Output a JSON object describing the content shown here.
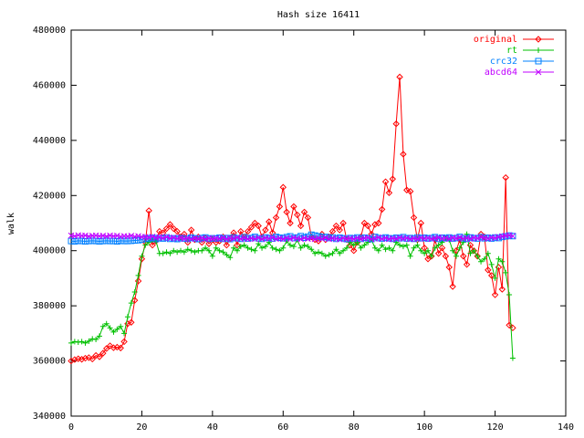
{
  "chart_data": {
    "type": "line",
    "title": "Hash size 16411",
    "ylabel": "walk",
    "x": [
      0,
      1,
      2,
      3,
      4,
      5,
      6,
      7,
      8,
      9,
      10,
      11,
      12,
      13,
      14,
      15,
      16,
      17,
      18,
      19,
      20,
      21,
      22,
      23,
      24,
      25,
      26,
      27,
      28,
      29,
      30,
      31,
      32,
      33,
      34,
      35,
      36,
      37,
      38,
      39,
      40,
      41,
      42,
      43,
      44,
      45,
      46,
      47,
      48,
      49,
      50,
      51,
      52,
      53,
      54,
      55,
      56,
      57,
      58,
      59,
      60,
      61,
      62,
      63,
      64,
      65,
      66,
      67,
      68,
      69,
      70,
      71,
      72,
      73,
      74,
      75,
      76,
      77,
      78,
      79,
      80,
      81,
      82,
      83,
      84,
      85,
      86,
      87,
      88,
      89,
      90,
      91,
      92,
      93,
      94,
      95,
      96,
      97,
      98,
      99,
      100,
      101,
      102,
      103,
      104,
      105,
      106,
      107,
      108,
      109,
      110,
      111,
      112,
      113,
      114,
      115,
      116,
      117,
      118,
      119,
      120,
      121,
      122,
      123,
      124,
      125
    ],
    "xlim": [
      0,
      140
    ],
    "xticks": [
      0,
      20,
      40,
      60,
      80,
      100,
      120,
      140
    ],
    "ylim": [
      340000,
      480000
    ],
    "yticks": [
      340000,
      360000,
      380000,
      400000,
      420000,
      440000,
      460000,
      480000
    ],
    "legend": "top-right",
    "series": [
      {
        "name": "original",
        "color": "#ff0000",
        "marker": "diamond",
        "values": [
          360000,
          360500,
          360800,
          360600,
          361000,
          361200,
          360700,
          362000,
          361500,
          362800,
          364500,
          365500,
          364800,
          365000,
          364700,
          367000,
          373500,
          374000,
          382000,
          389000,
          397000,
          403000,
          414500,
          402000,
          403500,
          407000,
          406500,
          408000,
          409500,
          408000,
          407000,
          405000,
          406000,
          403000,
          407500,
          404000,
          405000,
          403000,
          404500,
          402500,
          404000,
          403000,
          403500,
          405000,
          402000,
          404500,
          406500,
          402000,
          407000,
          405000,
          407000,
          408500,
          410000,
          409000,
          405000,
          407500,
          410500,
          406500,
          412000,
          416000,
          423000,
          414000,
          410000,
          416000,
          413000,
          409000,
          414000,
          412000,
          405000,
          404000,
          403500,
          406000,
          404000,
          405000,
          407000,
          409000,
          407500,
          410000,
          404000,
          402000,
          400000,
          403000,
          405000,
          410000,
          409000,
          406000,
          409500,
          410000,
          415000,
          425000,
          421000,
          426000,
          446000,
          463000,
          435000,
          422000,
          421500,
          412000,
          404000,
          410000,
          401000,
          397000,
          398000,
          404000,
          399000,
          401000,
          398000,
          394000,
          387000,
          400000,
          404000,
          398000,
          395000,
          402000,
          400000,
          398000,
          406000,
          405000,
          393000,
          391000,
          384000,
          394000,
          386000,
          426500,
          373000,
          372000
        ]
      },
      {
        "name": "rt",
        "color": "#00c000",
        "marker": "plus",
        "values": [
          366500,
          367000,
          366800,
          367000,
          366500,
          367200,
          368000,
          367800,
          369000,
          372500,
          373500,
          372000,
          370500,
          371500,
          372500,
          370000,
          376000,
          381000,
          385000,
          391000,
          398000,
          402000,
          403000,
          404000,
          403500,
          399000,
          399000,
          399500,
          399000,
          400000,
          399500,
          400000,
          399500,
          400500,
          400000,
          399500,
          400000,
          400000,
          401000,
          400000,
          398000,
          401000,
          400000,
          399500,
          398500,
          397500,
          401000,
          400000,
          401500,
          402000,
          401000,
          400500,
          400000,
          402500,
          401000,
          401500,
          403000,
          401000,
          400500,
          400000,
          401000,
          403500,
          402000,
          401500,
          404000,
          401000,
          402000,
          401500,
          400500,
          399000,
          399500,
          399000,
          398000,
          398500,
          399000,
          400500,
          399000,
          400000,
          401000,
          403000,
          402000,
          403000,
          401000,
          402000,
          403000,
          404000,
          401000,
          400000,
          402000,
          400500,
          401000,
          400000,
          403000,
          402000,
          401500,
          402000,
          398000,
          401000,
          402000,
          400000,
          399000,
          400000,
          398000,
          401000,
          402000,
          403000,
          404500,
          404000,
          400000,
          398000,
          401000,
          403000,
          406000,
          399000,
          400000,
          398000,
          396000,
          397000,
          399000,
          395000,
          390000,
          397000,
          396000,
          392000,
          384000,
          361000
        ]
      },
      {
        "name": "crc32",
        "color": "#0080ff",
        "marker": "square",
        "values": [
          403500,
          403400,
          403600,
          403500,
          403400,
          403500,
          403600,
          403500,
          403400,
          403500,
          403600,
          403500,
          403500,
          403400,
          403600,
          403500,
          403500,
          403600,
          403700,
          403800,
          404000,
          404500,
          404300,
          404700,
          404200,
          404600,
          404400,
          404800,
          404300,
          404500,
          404200,
          404600,
          404400,
          404300,
          404700,
          404500,
          404200,
          404600,
          404800,
          404300,
          404500,
          404400,
          404700,
          404300,
          404600,
          404200,
          404800,
          404500,
          404300,
          404900,
          404400,
          404600,
          405000,
          404500,
          404300,
          404800,
          404600,
          404400,
          405000,
          404700,
          404500,
          404900,
          405200,
          404600,
          404800,
          405300,
          404700,
          405100,
          405800,
          405500,
          405200,
          404900,
          405000,
          404600,
          404800,
          404300,
          404700,
          404500,
          404200,
          404600,
          404400,
          404800,
          404300,
          404700,
          404500,
          404200,
          405000,
          404600,
          404400,
          404800,
          404500,
          404300,
          404700,
          404500,
          404900,
          404400,
          404600,
          404300,
          404800,
          404500,
          404700,
          404400,
          404600,
          404900,
          404300,
          404700,
          404500,
          404800,
          404400,
          404600,
          405000,
          404500,
          404300,
          404800,
          404600,
          404400,
          404900,
          404500,
          404700,
          404400,
          404800,
          404600,
          405000,
          405200,
          405500,
          405300
        ]
      },
      {
        "name": "abcd64",
        "color": "#c000ff",
        "marker": "cross",
        "values": [
          405500,
          405300,
          405600,
          405400,
          405500,
          405200,
          405400,
          405500,
          405300,
          405400,
          405200,
          405500,
          405300,
          405400,
          405100,
          405300,
          405200,
          405400,
          405100,
          405300,
          405000,
          405000,
          404800,
          405100,
          404700,
          404900,
          404600,
          405000,
          404500,
          404800,
          404400,
          404700,
          404300,
          404600,
          404200,
          404500,
          404300,
          404600,
          404200,
          404500,
          404300,
          404600,
          404300,
          404700,
          404200,
          404500,
          404400,
          404800,
          404300,
          404600,
          404200,
          404500,
          404300,
          404700,
          404200,
          404600,
          404400,
          404800,
          404300,
          404500,
          404200,
          404600,
          404300,
          404700,
          404400,
          404200,
          404600,
          404300,
          404500,
          404200,
          404600,
          404300,
          404700,
          404200,
          404500,
          404400,
          404100,
          404600,
          404300,
          404500,
          404200,
          404600,
          404300,
          404500,
          404700,
          404200,
          404400,
          404800,
          404300,
          404600,
          404200,
          404500,
          404300,
          404700,
          404400,
          404600,
          404200,
          404500,
          404300,
          404700,
          404400,
          404600,
          404300,
          404500,
          404800,
          404400,
          404600,
          404300,
          404700,
          404500,
          404800,
          404400,
          404600,
          404300,
          404700,
          404500,
          404900,
          404600,
          404400,
          404800,
          404600,
          405000,
          405200,
          405400,
          405600,
          405300
        ]
      }
    ]
  }
}
